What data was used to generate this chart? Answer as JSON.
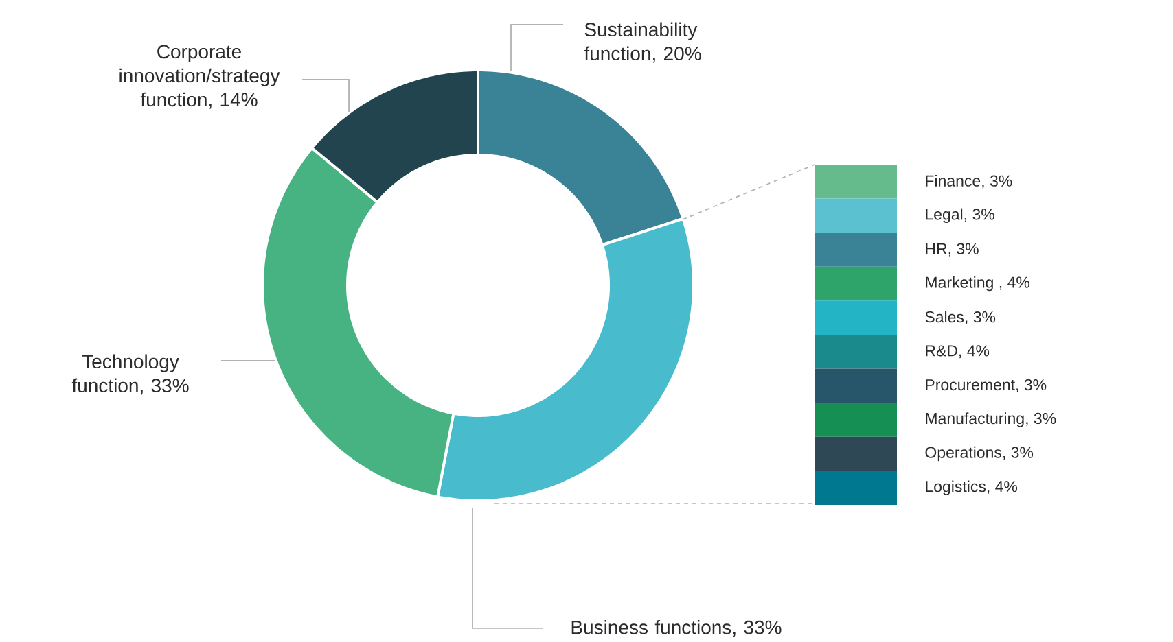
{
  "chart_data": [
    {
      "type": "donut",
      "categories": [
        "Sustainability function, 20%",
        "Business functions, 33%",
        "Technology function, 33%",
        "Corporate innovation/strategy function, 14%"
      ],
      "values": [
        20,
        33,
        33,
        14
      ],
      "colors": [
        "#3a8296",
        "#48bbcd",
        "#47b382",
        "#22444f"
      ]
    },
    {
      "type": "other",
      "categories": [
        "Finance",
        "Legal",
        "HR",
        "Marketing ",
        "Sales",
        "R&D",
        "Procurement",
        "Manufacturing",
        "Operations",
        "Logistics"
      ],
      "value_labels": [
        ", 3%",
        ", 3%",
        ", 3%",
        ", 4%",
        ", 3%",
        ", 4%",
        ", 3%",
        ", 3%",
        ", 3%",
        ", 4%"
      ],
      "values": [
        3,
        3,
        3,
        4,
        3,
        4,
        3,
        3,
        3,
        4
      ],
      "colors": [
        "#66bb8c",
        "#5bc0d0",
        "#3a8296",
        "#2ea36a",
        "#23b5c5",
        "#1a8a8c",
        "#27566b",
        "#168f55",
        "#2f4856",
        "#00788f"
      ]
    }
  ]
}
